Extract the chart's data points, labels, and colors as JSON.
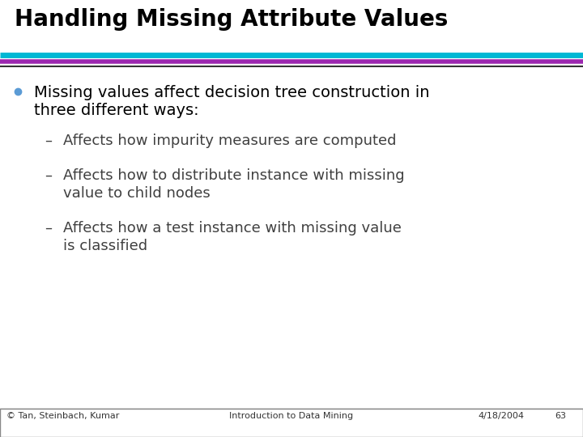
{
  "title": "Handling Missing Attribute Values",
  "title_color": "#000000",
  "title_fontsize": 20,
  "line1_color": "#00B8D4",
  "line2_color": "#9C27B0",
  "bullet_color": "#5B9BD5",
  "sub_color": "#404040",
  "bg_color": "#FFFFFF",
  "bullet_text_line1": "Missing values affect decision tree construction in",
  "bullet_text_line2": "three different ways:",
  "bullet_fontsize": 14,
  "sub1": "Affects how impurity measures are computed",
  "sub2_line1": "Affects how to distribute instance with missing",
  "sub2_line2": "value to child nodes",
  "sub3_line1": "Affects how a test instance with missing value",
  "sub3_line2": "is classified",
  "sub_fontsize": 13,
  "footer_left": "© Tan, Steinbach, Kumar",
  "footer_center": "Introduction to Data Mining",
  "footer_right": "4/18/2004",
  "footer_page": "63",
  "footer_fontsize": 8
}
